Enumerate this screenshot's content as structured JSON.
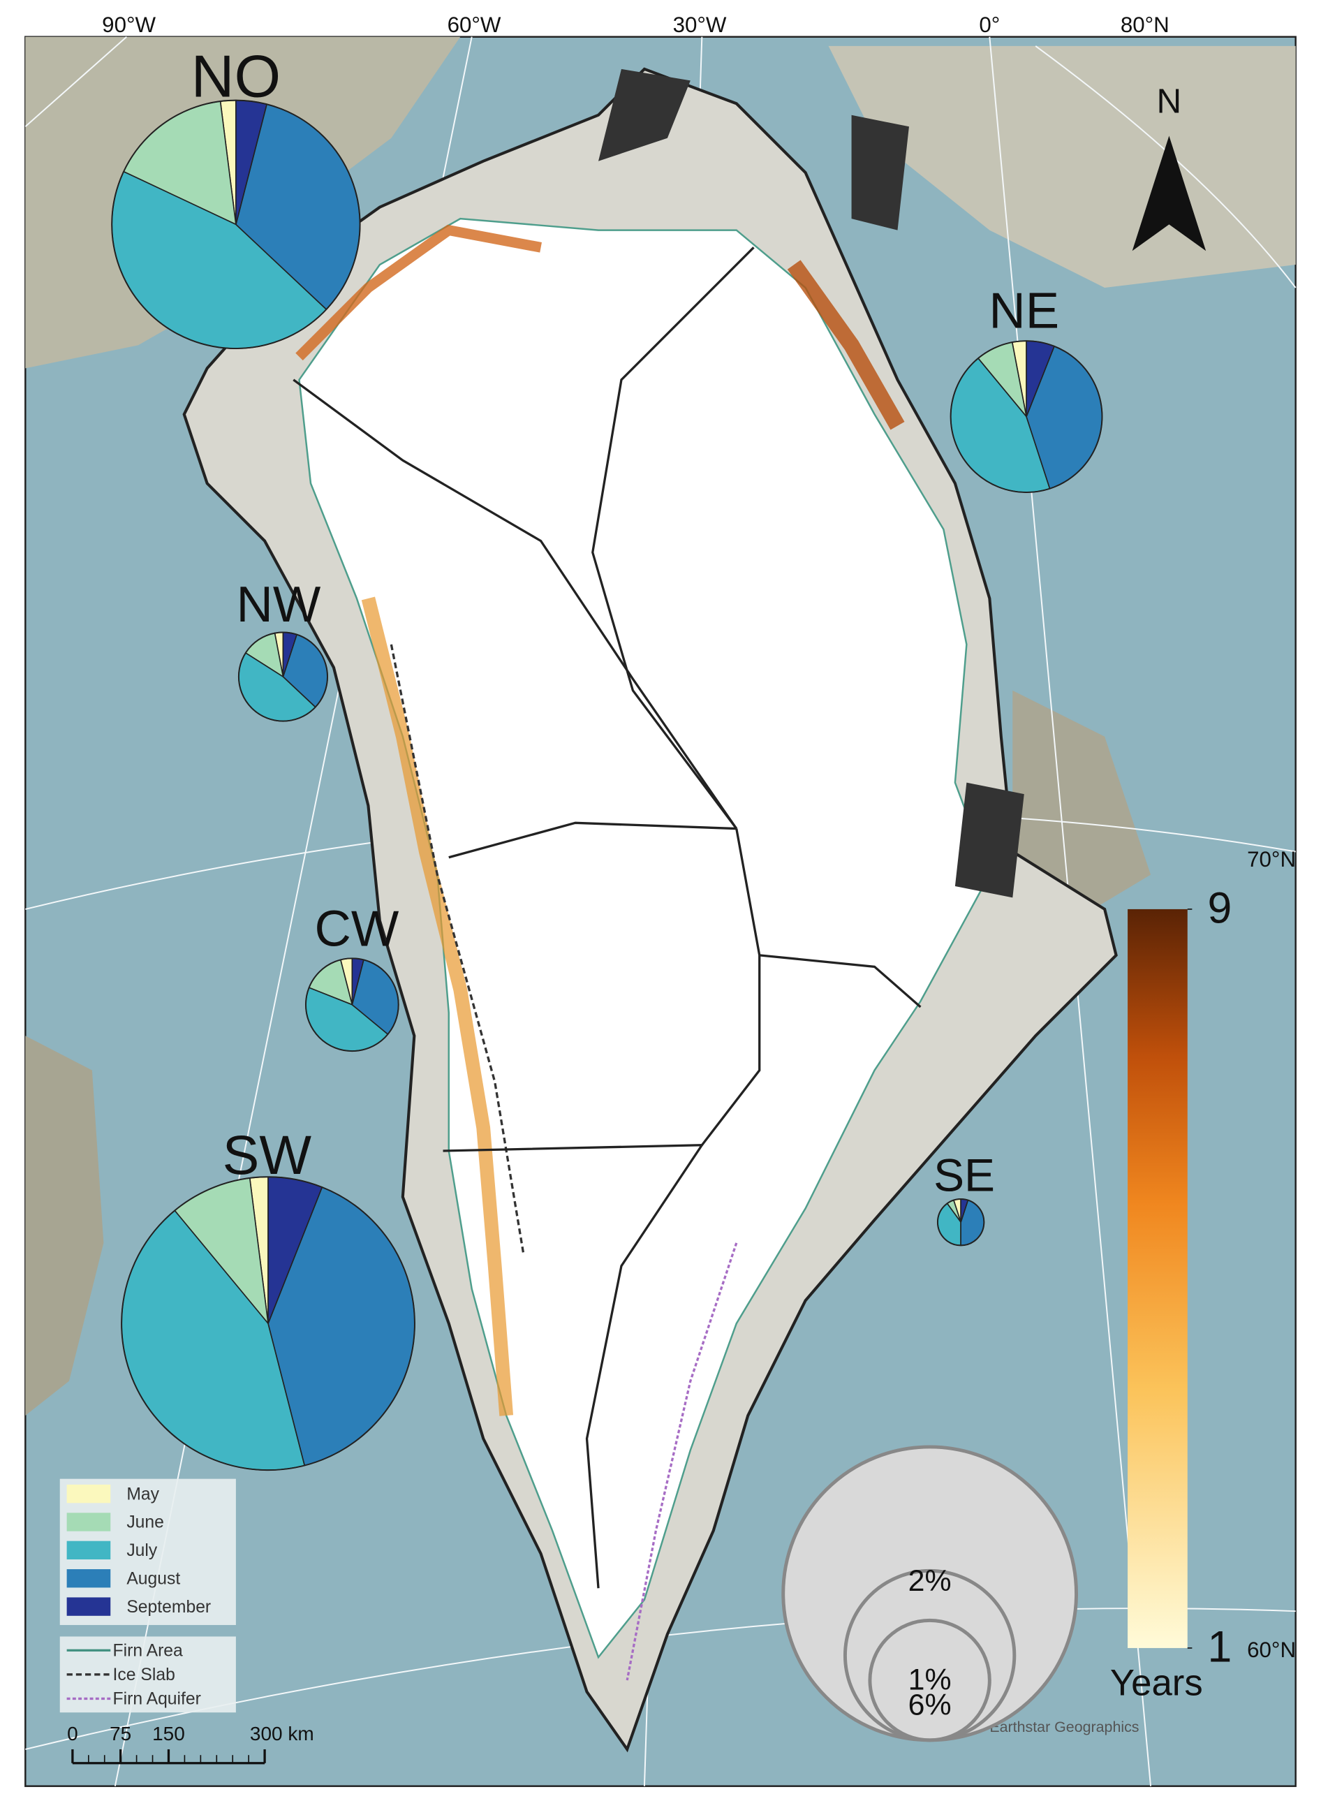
{
  "graticule_labels": [
    "90°W",
    "60°W",
    "30°W",
    "0°",
    "80°N",
    "70°N",
    "60°N"
  ],
  "north_arrow": "N",
  "months": [
    {
      "name": "May",
      "color": "#fbf8bd"
    },
    {
      "name": "June",
      "color": "#a5dbb5"
    },
    {
      "name": "July",
      "color": "#41b6c4"
    },
    {
      "name": "August",
      "color": "#2c7fb8"
    },
    {
      "name": "September",
      "color": "#253494"
    }
  ],
  "regions": [
    {
      "name": "NO",
      "size": 4.3,
      "values": [
        2,
        16,
        45,
        33,
        4
      ]
    },
    {
      "name": "NE",
      "size": 1.6,
      "values": [
        3,
        8,
        44,
        39,
        6
      ]
    },
    {
      "name": "NW",
      "size": 0.55,
      "values": [
        3,
        13,
        47,
        32,
        5
      ]
    },
    {
      "name": "CW",
      "size": 0.6,
      "values": [
        4,
        15,
        45,
        32,
        4
      ]
    },
    {
      "name": "SW",
      "size": 6,
      "values": [
        2,
        9,
        43,
        40,
        6
      ]
    },
    {
      "name": "SE",
      "size": 0.15,
      "values": [
        5,
        5,
        40,
        45,
        5
      ]
    }
  ],
  "size_legend": [
    {
      "value": 1,
      "label": "1%"
    },
    {
      "value": 2,
      "label": "2%"
    },
    {
      "value": 6,
      "label": "6%"
    }
  ],
  "colorbar": {
    "range": [
      1,
      9
    ],
    "ticks": [
      9,
      1
    ],
    "label": "Years"
  },
  "line_legend": [
    {
      "name": "Firn Area",
      "color": "#3f8f7f",
      "dash": "none"
    },
    {
      "name": "Ice Slab",
      "color": "#333333",
      "dash": "5 3"
    },
    {
      "name": "Firn Aquifer",
      "color": "#a66cc4",
      "dash": "3 2"
    }
  ],
  "scale_bar": {
    "ticks": [
      0,
      75,
      150,
      {
        "value": 300,
        "label": "300 km"
      }
    ]
  },
  "attribution": "Earthstar Geographics"
}
